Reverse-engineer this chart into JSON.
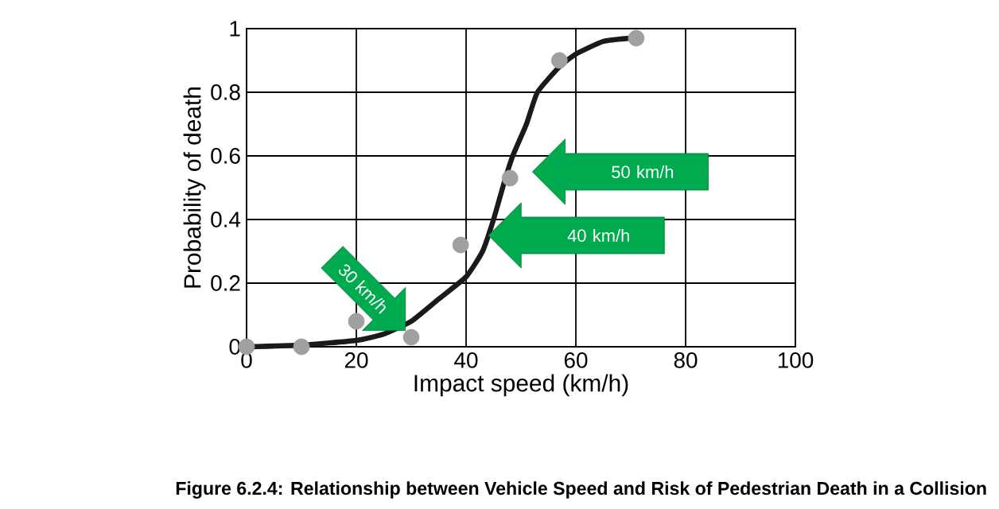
{
  "chart_data": {
    "type": "scatter",
    "xlabel": "Impact speed (km/h)",
    "ylabel": "Probability of death",
    "xlim": [
      0,
      100
    ],
    "ylim": [
      0,
      1
    ],
    "xticks": [
      0,
      20,
      40,
      60,
      80,
      100
    ],
    "yticks": [
      0,
      0.2,
      0.4,
      0.6,
      0.8,
      1
    ],
    "grid": true,
    "series": [
      {
        "type": "line",
        "marker": "none",
        "color": "#1a1a1a",
        "x": [
          0,
          10,
          20,
          25,
          30,
          35,
          40,
          43,
          45,
          47,
          48.5,
          51,
          53,
          57,
          60,
          65,
          70
        ],
        "values": [
          0,
          0.005,
          0.02,
          0.04,
          0.08,
          0.15,
          0.22,
          0.3,
          0.4,
          0.52,
          0.6,
          0.7,
          0.8,
          0.88,
          0.92,
          0.96,
          0.97
        ]
      },
      {
        "marker": "circle",
        "color": "#a0a0a0",
        "x": [
          0,
          10,
          20,
          30,
          39,
          48,
          57,
          71
        ],
        "values": [
          0,
          0,
          0.08,
          0.03,
          0.32,
          0.53,
          0.9,
          0.97
        ]
      }
    ],
    "annotations": [
      {
        "text": "30 km/h",
        "x": 29,
        "y": 0.05
      },
      "40 km/h",
      "50 km/h",
      "Figure 6.2.4: Relationship between Vehicle Speed and Risk of Pedestrian Death in a Collision"
    ]
  }
}
